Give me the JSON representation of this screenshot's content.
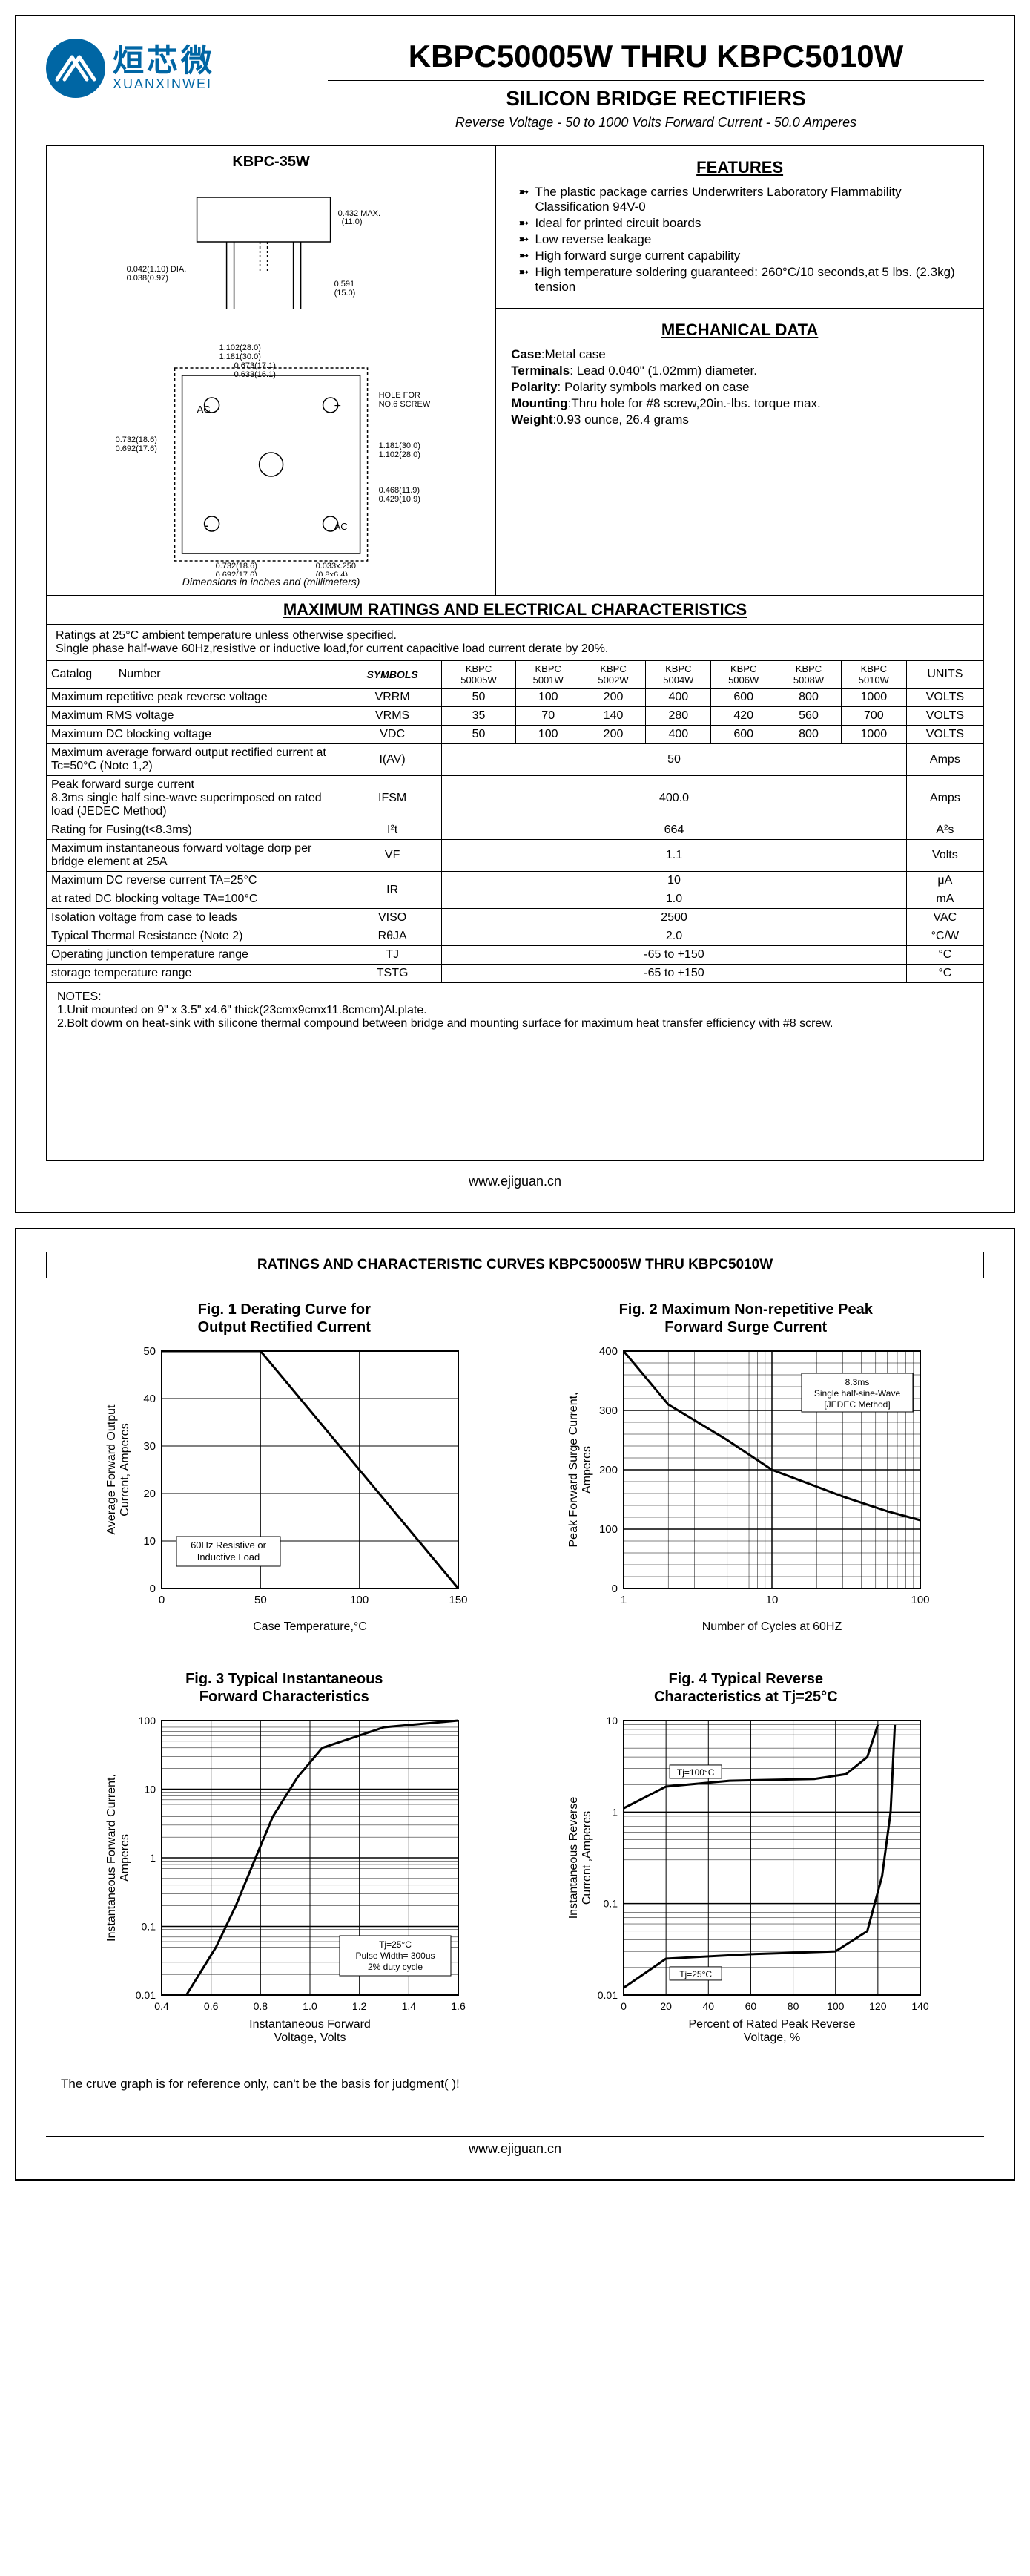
{
  "logo": {
    "cn": "烜芯微",
    "en": "XUANXINWEI"
  },
  "main_title": "KBPC50005W THRU KBPC5010W",
  "sub_title": "SILICON BRIDGE RECTIFIERS",
  "spec_line": "Reverse Voltage - 50 to 1000 Volts    Forward Current - 50.0 Amperes",
  "diagram_title": "KBPC-35W",
  "diagram_caption": "Dimensions in inches and (millimeters)",
  "features": {
    "title": "FEATURES",
    "items": [
      "The plastic package carries Underwriters Laboratory Flammability Classification 94V-0",
      "Ideal for printed circuit boards",
      "Low reverse leakage",
      "High forward surge current capability",
      "High temperature soldering guaranteed: 260°C/10 seconds,at 5 lbs. (2.3kg) tension"
    ]
  },
  "mechanical": {
    "title": "MECHANICAL DATA",
    "lines": [
      {
        "label": "Case",
        "value": "Metal case"
      },
      {
        "label": "Terminals",
        "value": " Lead 0.040\" (1.02mm) diameter."
      },
      {
        "label": "Polarity",
        "value": " Polarity symbols marked on case"
      },
      {
        "label": "Mounting",
        "value": "Thru hole for #8 screw,20in.-lbs. torque max."
      },
      {
        "label": "Weight",
        "value": "0.93 ounce, 26.4 grams"
      }
    ]
  },
  "ratings_section_title": "MAXIMUM RATINGS AND ELECTRICAL CHARACTERISTICS",
  "ratings_note": "Ratings at 25°C ambient temperature unless otherwise specified.\nSingle phase half-wave 60Hz,resistive or inductive load,for current capacitive load current derate by 20%.",
  "table": {
    "headers": [
      "Catalog        Number",
      "SYMBOLS",
      "KBPC 50005W",
      "KBPC 5001W",
      "KBPC 5002W",
      "KBPC 5004W",
      "KBPC 5006W",
      "KBPC 5008W",
      "KBPC 5010W",
      "UNITS"
    ],
    "rows": [
      {
        "param": "Maximum repetitive peak reverse voltage",
        "sym": "VRRM",
        "vals": [
          "50",
          "100",
          "200",
          "400",
          "600",
          "800",
          "1000"
        ],
        "unit": "VOLTS"
      },
      {
        "param": "Maximum RMS voltage",
        "sym": "VRMS",
        "vals": [
          "35",
          "70",
          "140",
          "280",
          "420",
          "560",
          "700"
        ],
        "unit": "VOLTS"
      },
      {
        "param": "Maximum DC blocking voltage",
        "sym": "VDC",
        "vals": [
          "50",
          "100",
          "200",
          "400",
          "600",
          "800",
          "1000"
        ],
        "unit": "VOLTS"
      },
      {
        "param": "Maximum average forward output rectified current at  Tc=50°C  (Note 1,2)",
        "sym": "I(AV)",
        "span": "50",
        "unit": "Amps"
      },
      {
        "param": "Peak forward surge current\n8.3ms single half sine-wave superimposed on rated load (JEDEC Method)",
        "sym": "IFSM",
        "span": "400.0",
        "unit": "Amps"
      },
      {
        "param": "Rating for Fusing(t<8.3ms)",
        "sym": "I²t",
        "span": "664",
        "unit": "A²s"
      },
      {
        "param": "Maximum instantaneous forward voltage dorp per bridge element at 25A",
        "sym": "VF",
        "span": "1.1",
        "unit": "Volts"
      },
      {
        "param": "Maximum DC reverse current      TA=25°C",
        "sym": "IR",
        "span": "10",
        "unit": "μA",
        "rowspan_sym": 2
      },
      {
        "param": "at rated DC blocking voltage      TA=100°C",
        "sym": "",
        "span": "1.0",
        "unit": "mA"
      },
      {
        "param": "Isolation voltage from case to leads",
        "sym": "VISO",
        "span": "2500",
        "unit": "VAC"
      },
      {
        "param": "Typical Thermal Resistance (Note 2)",
        "sym": "RθJA",
        "span": "2.0",
        "unit": "°C/W"
      },
      {
        "param": "Operating junction temperature range",
        "sym": "TJ",
        "span": "-65 to +150",
        "unit": "°C"
      },
      {
        "param": "storage temperature range",
        "sym": "TSTG",
        "span": "-65 to +150",
        "unit": "°C"
      }
    ]
  },
  "notes_title": "NOTES:",
  "notes": [
    "1.Unit mounted on 9\" x 3.5\" x4.6\" thick(23cmx9cmx11.8cmcm)Al.plate.",
    "2.Bolt dowm on heat-sink with silicone thermal compound between bridge and mounting surface for maximum heat transfer efficiency with #8 screw."
  ],
  "footer": "www.ejiguan.cn",
  "page2_title": "RATINGS AND CHARACTERISTIC CURVES KBPC50005W THRU KBPC5010W",
  "charts": {
    "fig1": {
      "title": "Fig. 1  Derating Curve for\nOutput Rectified Current",
      "xlabel": "Case Temperature,°C",
      "ylabel": "Average Forward Output\nCurrent, Amperes",
      "xlim": [
        0,
        150
      ],
      "ylim": [
        0,
        50
      ],
      "xtick_step": 50,
      "ytick_step": 10,
      "note": "60Hz Resistive or\nInductive Load",
      "line": [
        [
          0,
          50
        ],
        [
          50,
          50
        ],
        [
          150,
          0
        ]
      ],
      "colors": {
        "line": "#000",
        "grid": "#000",
        "bg": "#fff"
      }
    },
    "fig2": {
      "title": "Fig. 2  Maximum Non-repetitive Peak\nForward Surge Current",
      "xlabel": "Number of Cycles at  60HZ",
      "ylabel": "Peak Forward Surge Current,\nAmperes",
      "xlim": [
        1,
        100
      ],
      "ylim": [
        0,
        400
      ],
      "xscale": "log",
      "ytick_step": 100,
      "yminor_step": 20,
      "note": "8.3ms\nSingle half-sine-Wave\n[JEDEC Method]",
      "line": [
        [
          1,
          400
        ],
        [
          2,
          310
        ],
        [
          5,
          250
        ],
        [
          10,
          200
        ],
        [
          30,
          155
        ],
        [
          60,
          130
        ],
        [
          100,
          115
        ]
      ],
      "colors": {
        "line": "#000",
        "grid": "#000",
        "bg": "#fff"
      }
    },
    "fig3": {
      "title": "Fig. 3  Typical Instantaneous\nForward Characteristics",
      "xlabel": "Instantaneous Forward\nVoltage,  Volts",
      "ylabel": "Instantaneous Forward Current,\nAmperes",
      "xlim": [
        0.4,
        1.6
      ],
      "ylim": [
        0.01,
        100
      ],
      "yscale": "log",
      "xtick_step": 0.2,
      "note": "Tj=25°C\nPulse Width= 300us\n2% duty cycle",
      "line": [
        [
          0.5,
          0.01
        ],
        [
          0.62,
          0.05
        ],
        [
          0.7,
          0.2
        ],
        [
          0.78,
          1.0
        ],
        [
          0.85,
          4
        ],
        [
          0.95,
          15
        ],
        [
          1.05,
          40
        ],
        [
          1.3,
          80
        ],
        [
          1.6,
          100
        ]
      ],
      "colors": {
        "line": "#000",
        "grid": "#000",
        "bg": "#fff"
      }
    },
    "fig4": {
      "title": "Fig. 4  Typical Reverse\nCharacteristics at  Tj=25°C",
      "xlabel": "Percent of Rated Peak Reverse\nVoltage, %",
      "ylabel": "Instantaneous Reverse\nCurrent ,Amperes",
      "xlim": [
        0,
        140
      ],
      "ylim": [
        0.01,
        10
      ],
      "yscale": "log",
      "xtick_step": 20,
      "lines": [
        {
          "label": "Tj=100°C",
          "pts": [
            [
              0,
              1.1
            ],
            [
              20,
              1.9
            ],
            [
              50,
              2.2
            ],
            [
              90,
              2.3
            ],
            [
              105,
              2.6
            ],
            [
              115,
              4
            ],
            [
              120,
              9
            ]
          ]
        },
        {
          "label": "Tj=25°C",
          "pts": [
            [
              0,
              0.012
            ],
            [
              20,
              0.025
            ],
            [
              60,
              0.028
            ],
            [
              100,
              0.03
            ],
            [
              115,
              0.05
            ],
            [
              122,
              0.2
            ],
            [
              126,
              1
            ],
            [
              128,
              9
            ]
          ]
        }
      ],
      "colors": {
        "line": "#000",
        "grid": "#000",
        "bg": "#fff"
      }
    }
  },
  "disclaimer": "The cruve graph is for reference only, can't be the basis for judgment(                               )!"
}
